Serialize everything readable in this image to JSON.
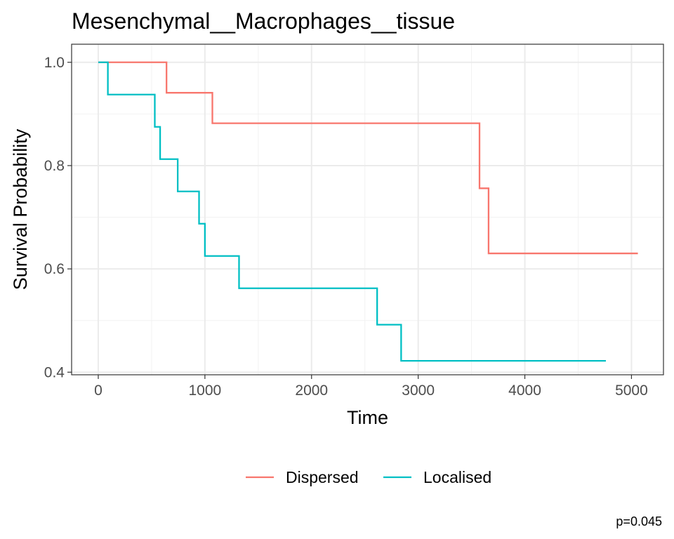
{
  "chart_data": {
    "type": "line",
    "step": true,
    "title": "Mesenchymal__Macrophages__tissue",
    "xlabel": "Time",
    "ylabel": "Survival Probability",
    "xlim": [
      -250,
      5300
    ],
    "ylim": [
      0.395,
      1.035
    ],
    "x_ticks": [
      0,
      1000,
      2000,
      3000,
      4000,
      5000
    ],
    "x_tick_labels": [
      "0",
      "1000",
      "2000",
      "3000",
      "4000",
      "5000"
    ],
    "y_ticks": [
      0.4,
      0.6,
      0.8,
      1.0
    ],
    "y_tick_labels": [
      "0.4",
      "0.6",
      "0.8",
      "1.0"
    ],
    "grid": true,
    "legend_position": "bottom",
    "annotation": "p=0.045",
    "series": [
      {
        "name": "Dispersed",
        "color": "#F8766D",
        "x": [
          0,
          640,
          1070,
          3575,
          3660,
          5060
        ],
        "y": [
          1.0,
          0.941,
          0.882,
          0.756,
          0.63,
          0.63
        ]
      },
      {
        "name": "Localised",
        "color": "#00BFC4",
        "x": [
          0,
          90,
          530,
          580,
          745,
          945,
          1000,
          1320,
          2615,
          2840,
          4760
        ],
        "y": [
          1.0,
          0.9375,
          0.875,
          0.8125,
          0.75,
          0.6875,
          0.625,
          0.5625,
          0.492,
          0.422,
          0.422
        ]
      }
    ]
  }
}
